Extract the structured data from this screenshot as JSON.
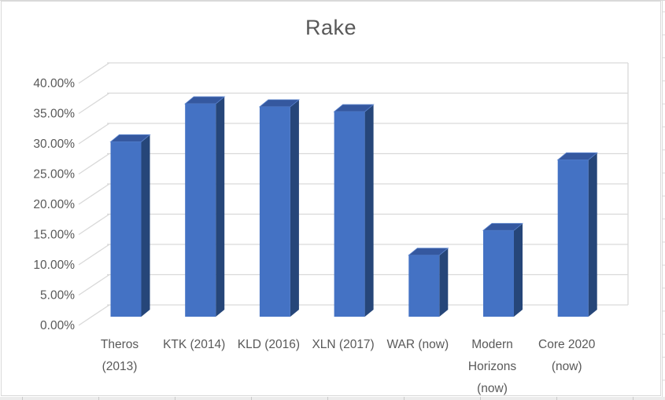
{
  "chart_data": {
    "type": "bar",
    "style": "3d-column",
    "title": "Rake",
    "categories": [
      "Theros (2013)",
      "KTK (2014)",
      "KLD (2016)",
      "XLN (2017)",
      "WAR (now)",
      "Modern Horizons (now)",
      "Core 2020 (now)"
    ],
    "values": [
      29.0,
      35.3,
      34.8,
      34.0,
      10.2,
      14.3,
      26.0
    ],
    "unit": "%",
    "xlabel": "",
    "ylabel": "",
    "ylim": [
      0,
      40
    ],
    "y_tick_step": 5,
    "y_tick_labels": [
      "0.00%",
      "5.00%",
      "10.00%",
      "15.00%",
      "20.00%",
      "25.00%",
      "30.00%",
      "35.00%",
      "40.00%"
    ],
    "category_label_lines": [
      [
        "Theros",
        "(2013)"
      ],
      [
        "KTK (2014)"
      ],
      [
        "KLD (2016)"
      ],
      [
        "XLN (2017)"
      ],
      [
        "WAR (now)"
      ],
      [
        "Modern",
        "Horizons",
        "(now)"
      ],
      [
        "Core 2020",
        "(now)"
      ]
    ],
    "grid": true,
    "legend": "none",
    "colors": {
      "bar_front": "#4472C4",
      "bar_top": "#35589F",
      "bar_side": "#264679",
      "bar_edge_highlight": "#5B84CE",
      "gridline": "#D9D9D9",
      "axis_text": "#595959",
      "title_text": "#595959",
      "chart_border": "#D9D9D9",
      "sheet_line": "#C9C9C9",
      "sheet_strip": "#ECECEC",
      "background": "#FFFFFF"
    }
  }
}
